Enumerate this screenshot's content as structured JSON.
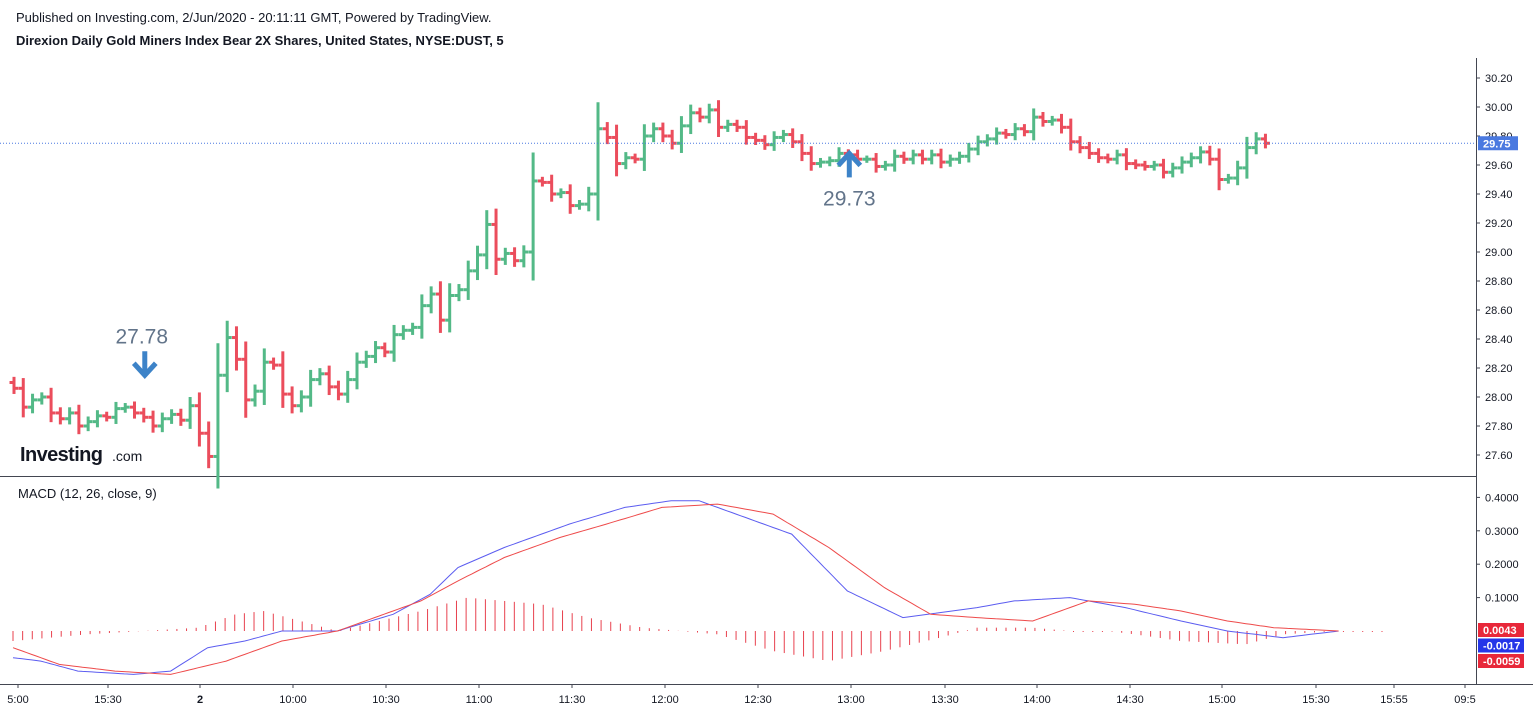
{
  "header": {
    "published": "Published on Investing.com, 2/Jun/2020 - 20:11:11 GMT, Powered by TradingView.",
    "instrument": "Direxion Daily Gold Miners Index Bear 2X Shares, United States, NYSE:DUST, 5"
  },
  "logo": {
    "main": "Investing",
    "domain": ".com"
  },
  "colors": {
    "up": "#53b987",
    "down": "#eb4d5c",
    "macd_line": "#5b5cf0",
    "signal_line": "#ee4a4a",
    "hist": "#e8414e",
    "last_price": "#4a79e0"
  },
  "chart_data": [
    {
      "type": "ohlc",
      "y_axis_ticks": [
        "30.20",
        "30.00",
        "29.80",
        "29.60",
        "29.40",
        "29.20",
        "29.00",
        "28.80",
        "28.60",
        "28.40",
        "28.20",
        "28.00",
        "27.80",
        "27.60"
      ],
      "ylim": [
        27.45,
        30.32
      ],
      "x_axis_ticks": [
        "5:00",
        "15:30",
        "2",
        "10:00",
        "10:30",
        "11:00",
        "11:30",
        "12:00",
        "12:30",
        "13:00",
        "13:30",
        "14:00",
        "14:30",
        "15:00",
        "15:30",
        "15:55",
        "09:5"
      ],
      "last_price": {
        "label": "29.75",
        "value": 29.75
      },
      "annotations": [
        {
          "text": "27.78",
          "bar": 14,
          "direction": "down",
          "price": 28.15
        },
        {
          "text": "29.73",
          "bar": 90,
          "direction": "up",
          "price": 29.68
        }
      ],
      "closes": [
        28.06,
        27.93,
        27.98,
        28.0,
        27.89,
        27.85,
        27.89,
        27.8,
        27.83,
        27.87,
        27.86,
        27.92,
        27.93,
        27.89,
        27.86,
        27.8,
        27.85,
        27.88,
        27.84,
        27.94,
        27.75,
        27.59,
        28.15,
        28.41,
        28.26,
        27.98,
        28.04,
        28.24,
        28.22,
        28.02,
        27.94,
        28.0,
        28.12,
        28.16,
        28.07,
        28.02,
        28.12,
        28.24,
        28.28,
        28.34,
        28.31,
        28.43,
        28.46,
        28.48,
        28.63,
        28.71,
        28.53,
        28.7,
        28.74,
        28.87,
        28.98,
        29.19,
        28.95,
        28.99,
        28.94,
        29.0,
        29.49,
        29.48,
        29.4,
        29.41,
        29.32,
        29.33,
        29.4,
        29.85,
        29.79,
        29.61,
        29.65,
        29.64,
        29.8,
        29.85,
        29.8,
        29.75,
        29.87,
        29.96,
        29.93,
        29.98,
        29.86,
        29.88,
        29.86,
        29.79,
        29.77,
        29.74,
        29.79,
        29.81,
        29.76,
        29.68,
        29.61,
        29.62,
        29.63,
        29.68,
        29.67,
        29.64,
        29.64,
        29.59,
        29.6,
        29.66,
        29.64,
        29.67,
        29.64,
        29.67,
        29.62,
        29.64,
        29.66,
        29.71,
        29.76,
        29.78,
        29.82,
        29.81,
        29.85,
        29.83,
        29.93,
        29.9,
        29.91,
        29.86,
        29.76,
        29.72,
        29.68,
        29.65,
        29.64,
        29.67,
        29.61,
        29.6,
        29.59,
        29.6,
        29.55,
        29.58,
        29.62,
        29.65,
        29.69,
        29.64,
        29.5,
        29.51,
        29.58,
        29.72,
        29.78,
        29.75
      ]
    },
    {
      "type": "macd",
      "title": "MACD (12, 26, close, 9)",
      "y_axis_ticks": [
        "0.4000",
        "0.3000",
        "0.2000",
        "0.1000"
      ],
      "ylim": [
        -0.135,
        0.43
      ],
      "value_badges": [
        {
          "label": "0.0043",
          "value": 0.0043,
          "color": "#e8283a"
        },
        {
          "label": "-0.0017",
          "value": -0.0017,
          "color": "#2536e8"
        },
        {
          "label": "-0.0059",
          "value": -0.0059,
          "color": "#e8283a"
        }
      ],
      "series": [
        {
          "name": "MACD",
          "points": [
            [
              0,
              -0.08
            ],
            [
              3,
              -0.09
            ],
            [
              7,
              -0.12
            ],
            [
              13,
              -0.13
            ],
            [
              17,
              -0.12
            ],
            [
              21,
              -0.05
            ],
            [
              25,
              -0.03
            ],
            [
              29,
              0.0
            ],
            [
              35,
              0.0
            ],
            [
              41,
              0.05
            ],
            [
              45,
              0.11
            ],
            [
              48,
              0.19
            ],
            [
              53,
              0.25
            ],
            [
              60,
              0.32
            ],
            [
              66,
              0.37
            ],
            [
              71,
              0.39
            ],
            [
              74,
              0.39
            ],
            [
              80,
              0.33
            ],
            [
              84,
              0.29
            ],
            [
              90,
              0.12
            ],
            [
              96,
              0.04
            ],
            [
              104,
              0.07
            ],
            [
              108,
              0.09
            ],
            [
              114,
              0.1
            ],
            [
              120,
              0.07
            ],
            [
              126,
              0.03
            ],
            [
              131,
              0.0
            ],
            [
              137,
              -0.02
            ],
            [
              143,
              0.0
            ]
          ]
        },
        {
          "name": "Signal",
          "points": [
            [
              0,
              -0.05
            ],
            [
              5,
              -0.1
            ],
            [
              11,
              -0.12
            ],
            [
              17,
              -0.13
            ],
            [
              23,
              -0.09
            ],
            [
              29,
              -0.03
            ],
            [
              35,
              0.0
            ],
            [
              39,
              0.04
            ],
            [
              44,
              0.09
            ],
            [
              48,
              0.15
            ],
            [
              53,
              0.22
            ],
            [
              59,
              0.28
            ],
            [
              64,
              0.32
            ],
            [
              70,
              0.37
            ],
            [
              76,
              0.38
            ],
            [
              82,
              0.35
            ],
            [
              88,
              0.25
            ],
            [
              94,
              0.13
            ],
            [
              99,
              0.05
            ],
            [
              104,
              0.04
            ],
            [
              110,
              0.03
            ],
            [
              116,
              0.09
            ],
            [
              121,
              0.08
            ],
            [
              126,
              0.06
            ],
            [
              131,
              0.03
            ],
            [
              136,
              0.01
            ],
            [
              143,
              0.0
            ]
          ]
        },
        {
          "name": "Histogram",
          "points": [
            [
              0,
              -0.03
            ],
            [
              8,
              -0.01
            ],
            [
              14,
              0.0
            ],
            [
              20,
              0.01
            ],
            [
              24,
              0.05
            ],
            [
              27,
              0.06
            ],
            [
              31,
              0.03
            ],
            [
              35,
              0.0
            ],
            [
              38,
              0.02
            ],
            [
              44,
              0.06
            ],
            [
              49,
              0.1
            ],
            [
              53,
              0.09
            ],
            [
              57,
              0.08
            ],
            [
              62,
              0.04
            ],
            [
              68,
              0.01
            ],
            [
              76,
              -0.01
            ],
            [
              82,
              -0.06
            ],
            [
              88,
              -0.09
            ],
            [
              94,
              -0.06
            ],
            [
              100,
              -0.02
            ],
            [
              104,
              0.01
            ],
            [
              110,
              0.01
            ],
            [
              114,
              0.0
            ],
            [
              118,
              0.0
            ],
            [
              121,
              -0.01
            ],
            [
              126,
              -0.03
            ],
            [
              133,
              -0.04
            ],
            [
              137,
              -0.01
            ],
            [
              143,
              0.0
            ]
          ]
        }
      ]
    }
  ]
}
